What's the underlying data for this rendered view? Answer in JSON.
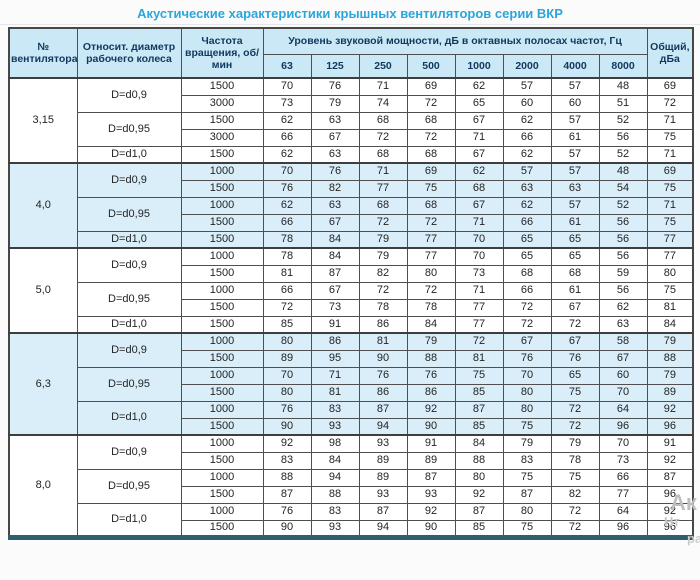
{
  "title": "Акустические характеристики крышных вентиляторов серии ВКР",
  "colors": {
    "title_accent": "#2ba6da",
    "header_bg": "#cbe8f6",
    "header_text": "#10395e",
    "group_shade_bg": "#d9eef9",
    "grid_border": "#4f4f4f",
    "bottom_bar": "#2e5f6e"
  },
  "table": {
    "headers": {
      "fan_number": "№ вентилятора",
      "diameter": "Относит. диаметр рабочего колеса",
      "speed": "Частота вращения, об/мин",
      "spl_group": "Уровень звуковой мощности, дБ в октавных полосах частот, Гц",
      "frequencies": [
        "63",
        "125",
        "250",
        "500",
        "1000",
        "2000",
        "4000",
        "8000"
      ],
      "total": "Общий, дБа"
    },
    "groups": [
      {
        "fan": "3,15",
        "shaded": false,
        "diameters": [
          {
            "label": "D=d0,9",
            "rows": [
              {
                "speed": "1500",
                "values": [
                  70,
                  76,
                  71,
                  69,
                  62,
                  57,
                  57,
                  48
                ],
                "total": 69
              },
              {
                "speed": "3000",
                "values": [
                  73,
                  79,
                  74,
                  72,
                  65,
                  60,
                  60,
                  51
                ],
                "total": 72
              }
            ]
          },
          {
            "label": "D=d0,95",
            "rows": [
              {
                "speed": "1500",
                "values": [
                  62,
                  63,
                  68,
                  68,
                  67,
                  62,
                  57,
                  52
                ],
                "total": 71
              },
              {
                "speed": "3000",
                "values": [
                  66,
                  67,
                  72,
                  72,
                  71,
                  66,
                  61,
                  56
                ],
                "total": 75
              }
            ]
          },
          {
            "label": "D=d1,0",
            "rows": [
              {
                "speed": "1500",
                "values": [
                  62,
                  63,
                  68,
                  68,
                  67,
                  62,
                  57,
                  52
                ],
                "total": 71
              }
            ]
          }
        ]
      },
      {
        "fan": "4,0",
        "shaded": true,
        "diameters": [
          {
            "label": "D=d0,9",
            "rows": [
              {
                "speed": "1000",
                "values": [
                  70,
                  76,
                  71,
                  69,
                  62,
                  57,
                  57,
                  48
                ],
                "total": 69
              },
              {
                "speed": "1500",
                "values": [
                  76,
                  82,
                  77,
                  75,
                  68,
                  63,
                  63,
                  54
                ],
                "total": 75
              }
            ]
          },
          {
            "label": "D=d0,95",
            "rows": [
              {
                "speed": "1000",
                "values": [
                  62,
                  63,
                  68,
                  68,
                  67,
                  62,
                  57,
                  52
                ],
                "total": 71
              },
              {
                "speed": "1500",
                "values": [
                  66,
                  67,
                  72,
                  72,
                  71,
                  66,
                  61,
                  56
                ],
                "total": 75
              }
            ]
          },
          {
            "label": "D=d1,0",
            "rows": [
              {
                "speed": "1500",
                "values": [
                  78,
                  84,
                  79,
                  77,
                  70,
                  65,
                  65,
                  56
                ],
                "total": 77
              }
            ]
          }
        ]
      },
      {
        "fan": "5,0",
        "shaded": false,
        "diameters": [
          {
            "label": "D=d0,9",
            "rows": [
              {
                "speed": "1000",
                "values": [
                  78,
                  84,
                  79,
                  77,
                  70,
                  65,
                  65,
                  56
                ],
                "total": 77
              },
              {
                "speed": "1500",
                "values": [
                  81,
                  87,
                  82,
                  80,
                  73,
                  68,
                  68,
                  59
                ],
                "total": 80
              }
            ]
          },
          {
            "label": "D=d0,95",
            "rows": [
              {
                "speed": "1000",
                "values": [
                  66,
                  67,
                  72,
                  72,
                  71,
                  66,
                  61,
                  56
                ],
                "total": 75
              },
              {
                "speed": "1500",
                "values": [
                  72,
                  73,
                  78,
                  78,
                  77,
                  72,
                  67,
                  62
                ],
                "total": 81
              }
            ]
          },
          {
            "label": "D=d1,0",
            "rows": [
              {
                "speed": "1500",
                "values": [
                  85,
                  91,
                  86,
                  84,
                  77,
                  72,
                  72,
                  63
                ],
                "total": 84
              }
            ]
          }
        ]
      },
      {
        "fan": "6,3",
        "shaded": true,
        "diameters": [
          {
            "label": "D=d0,9",
            "rows": [
              {
                "speed": "1000",
                "values": [
                  80,
                  86,
                  81,
                  79,
                  72,
                  67,
                  67,
                  58
                ],
                "total": 79
              },
              {
                "speed": "1500",
                "values": [
                  89,
                  95,
                  90,
                  88,
                  81,
                  76,
                  76,
                  67
                ],
                "total": 88
              }
            ]
          },
          {
            "label": "D=d0,95",
            "rows": [
              {
                "speed": "1000",
                "values": [
                  70,
                  71,
                  76,
                  76,
                  75,
                  70,
                  65,
                  60
                ],
                "total": 79
              },
              {
                "speed": "1500",
                "values": [
                  80,
                  81,
                  86,
                  86,
                  85,
                  80,
                  75,
                  70
                ],
                "total": 89
              }
            ]
          },
          {
            "label": "D=d1,0",
            "rows": [
              {
                "speed": "1000",
                "values": [
                  76,
                  83,
                  87,
                  92,
                  87,
                  80,
                  72,
                  64
                ],
                "total": 92
              },
              {
                "speed": "1500",
                "values": [
                  90,
                  93,
                  94,
                  90,
                  85,
                  75,
                  72,
                  96
                ],
                "total": 96
              }
            ]
          }
        ]
      },
      {
        "fan": "8,0",
        "shaded": false,
        "diameters": [
          {
            "label": "D=d0,9",
            "rows": [
              {
                "speed": "1000",
                "values": [
                  92,
                  98,
                  93,
                  91,
                  84,
                  79,
                  79,
                  70
                ],
                "total": 91
              },
              {
                "speed": "1500",
                "values": [
                  83,
                  84,
                  89,
                  89,
                  88,
                  83,
                  78,
                  73
                ],
                "total": 92
              }
            ]
          },
          {
            "label": "D=d0,95",
            "rows": [
              {
                "speed": "1000",
                "values": [
                  88,
                  94,
                  89,
                  87,
                  80,
                  75,
                  75,
                  66
                ],
                "total": 87
              },
              {
                "speed": "1500",
                "values": [
                  87,
                  88,
                  93,
                  93,
                  92,
                  87,
                  82,
                  77
                ],
                "total": 96
              }
            ]
          },
          {
            "label": "D=d1,0",
            "rows": [
              {
                "speed": "1000",
                "values": [
                  76,
                  83,
                  87,
                  92,
                  87,
                  80,
                  72,
                  64
                ],
                "total": 92
              },
              {
                "speed": "1500",
                "values": [
                  90,
                  93,
                  94,
                  90,
                  85,
                  75,
                  72,
                  96
                ],
                "total": 96
              }
            ]
          }
        ]
      }
    ]
  },
  "watermark": {
    "l1": "Ак",
    "l2": "Нт",
    "l3": "ра"
  }
}
